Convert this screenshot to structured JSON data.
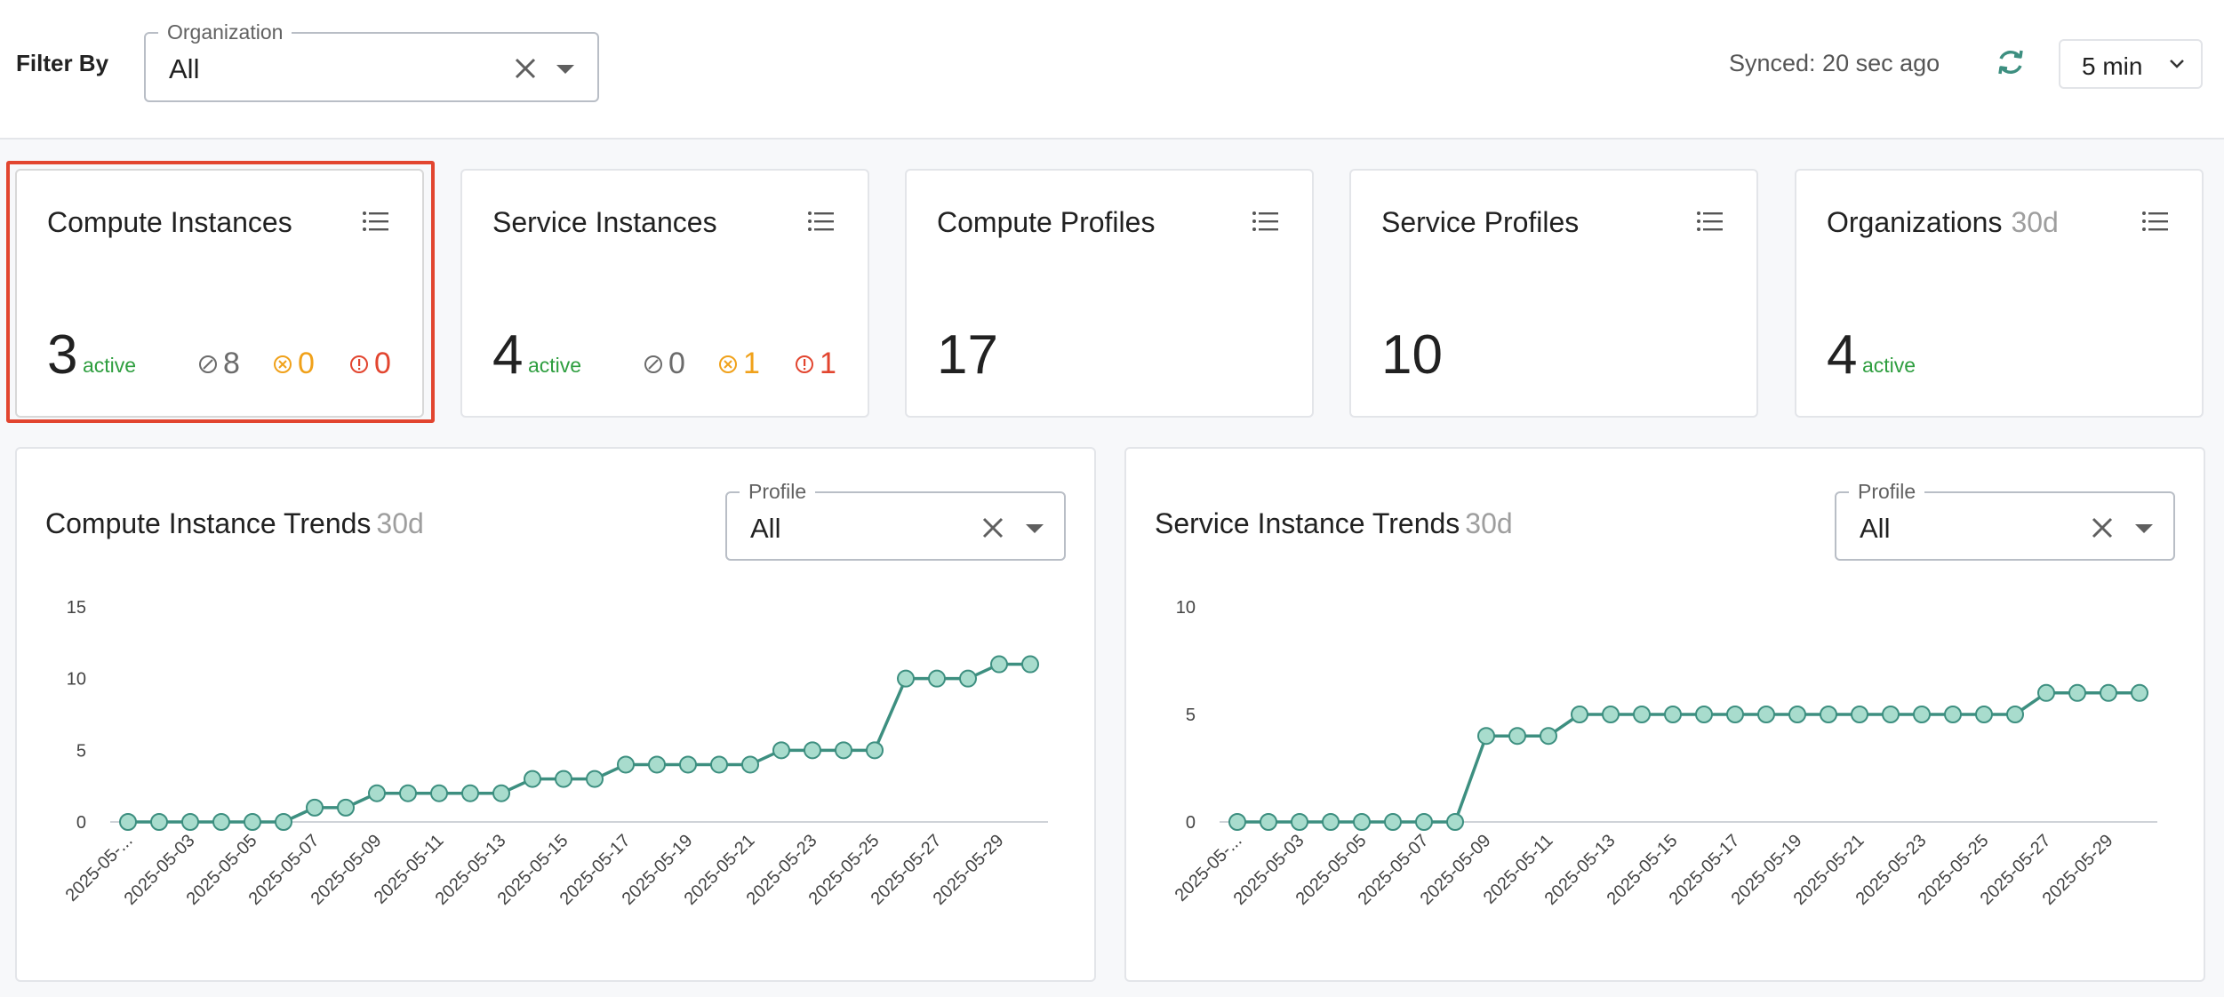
{
  "filter": {
    "label": "Filter By",
    "organization": {
      "legend": "Organization",
      "value": "All"
    }
  },
  "sync": {
    "text": "Synced: 20 sec ago",
    "interval": "5 min"
  },
  "cards": [
    {
      "title": "Compute Instances",
      "subtitle": "",
      "value": "3",
      "active_label": "active",
      "stats": {
        "stopped": "8",
        "warning": "0",
        "error": "0"
      }
    },
    {
      "title": "Service Instances",
      "subtitle": "",
      "value": "4",
      "active_label": "active",
      "stats": {
        "stopped": "0",
        "warning": "1",
        "error": "1"
      }
    },
    {
      "title": "Compute Profiles",
      "subtitle": "",
      "value": "17",
      "active_label": ""
    },
    {
      "title": "Service Profiles",
      "subtitle": "",
      "value": "10",
      "active_label": ""
    },
    {
      "title": "Organizations",
      "subtitle": "30d",
      "value": "4",
      "active_label": "active"
    }
  ],
  "colors": {
    "accent": "#3d8f80",
    "point_fill": "#a8dccd",
    "active": "#2e9e3f",
    "warning": "#f0a11a",
    "error": "#e2452f",
    "highlight": "#e2452f"
  },
  "chart_data": [
    {
      "type": "line",
      "title": "Compute Instance Trends",
      "subtitle": "30d",
      "profile_filter": {
        "legend": "Profile",
        "value": "All"
      },
      "x": [
        "2025-05-01",
        "2025-05-02",
        "2025-05-03",
        "2025-05-04",
        "2025-05-05",
        "2025-05-06",
        "2025-05-07",
        "2025-05-08",
        "2025-05-09",
        "2025-05-10",
        "2025-05-11",
        "2025-05-12",
        "2025-05-13",
        "2025-05-14",
        "2025-05-15",
        "2025-05-16",
        "2025-05-17",
        "2025-05-18",
        "2025-05-19",
        "2025-05-20",
        "2025-05-21",
        "2025-05-22",
        "2025-05-23",
        "2025-05-24",
        "2025-05-25",
        "2025-05-26",
        "2025-05-27",
        "2025-05-28",
        "2025-05-29",
        "2025-05-30"
      ],
      "x_tick_labels": [
        "2025-05-...",
        "2025-05-03",
        "2025-05-05",
        "2025-05-07",
        "2025-05-09",
        "2025-05-11",
        "2025-05-13",
        "2025-05-15",
        "2025-05-17",
        "2025-05-19",
        "2025-05-21",
        "2025-05-23",
        "2025-05-25",
        "2025-05-27",
        "2025-05-29"
      ],
      "values": [
        0,
        0,
        0,
        0,
        0,
        0,
        1,
        1,
        2,
        2,
        2,
        2,
        2,
        3,
        3,
        3,
        4,
        4,
        4,
        4,
        4,
        5,
        5,
        5,
        5,
        10,
        10,
        10,
        11,
        11
      ],
      "yticks": [
        0,
        5,
        10,
        15
      ],
      "ylim": [
        0,
        15
      ]
    },
    {
      "type": "line",
      "title": "Service Instance Trends",
      "subtitle": "30d",
      "profile_filter": {
        "legend": "Profile",
        "value": "All"
      },
      "x": [
        "2025-05-01",
        "2025-05-02",
        "2025-05-03",
        "2025-05-04",
        "2025-05-05",
        "2025-05-06",
        "2025-05-07",
        "2025-05-08",
        "2025-05-09",
        "2025-05-10",
        "2025-05-11",
        "2025-05-12",
        "2025-05-13",
        "2025-05-14",
        "2025-05-15",
        "2025-05-16",
        "2025-05-17",
        "2025-05-18",
        "2025-05-19",
        "2025-05-20",
        "2025-05-21",
        "2025-05-22",
        "2025-05-23",
        "2025-05-24",
        "2025-05-25",
        "2025-05-26",
        "2025-05-27",
        "2025-05-28",
        "2025-05-29",
        "2025-05-30"
      ],
      "x_tick_labels": [
        "2025-05-...",
        "2025-05-03",
        "2025-05-05",
        "2025-05-07",
        "2025-05-09",
        "2025-05-11",
        "2025-05-13",
        "2025-05-15",
        "2025-05-17",
        "2025-05-19",
        "2025-05-21",
        "2025-05-23",
        "2025-05-25",
        "2025-05-27",
        "2025-05-29"
      ],
      "values": [
        0,
        0,
        0,
        0,
        0,
        0,
        0,
        0,
        4,
        4,
        4,
        5,
        5,
        5,
        5,
        5,
        5,
        5,
        5,
        5,
        5,
        5,
        5,
        5,
        5,
        5,
        6,
        6,
        6,
        6
      ],
      "yticks": [
        0,
        5,
        10
      ],
      "ylim": [
        0,
        10
      ]
    }
  ]
}
